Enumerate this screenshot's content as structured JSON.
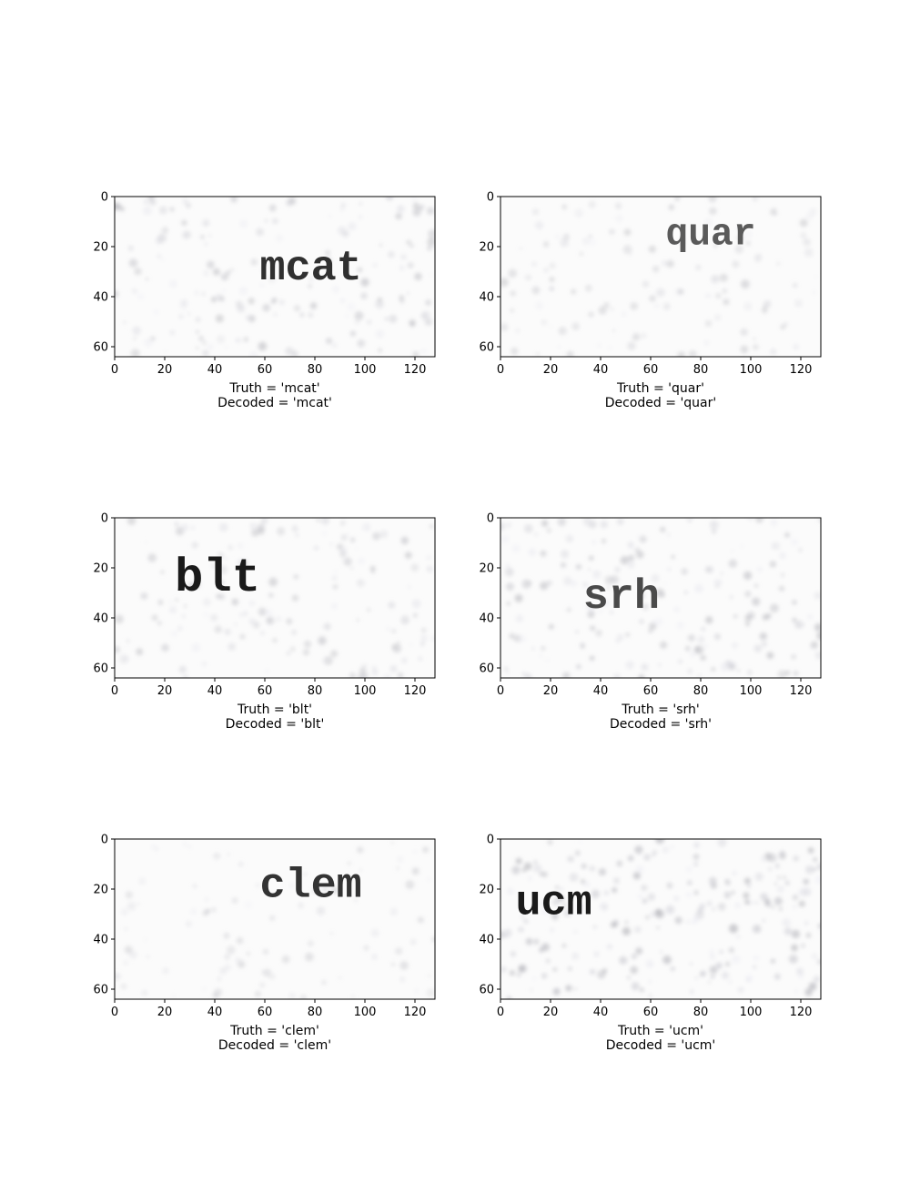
{
  "chart_data": [
    {
      "type": "image",
      "xticks": [
        0,
        20,
        40,
        60,
        80,
        100,
        120
      ],
      "yticks": [
        0,
        20,
        40,
        60
      ],
      "xlim": [
        0,
        128
      ],
      "ylim": [
        64,
        0
      ],
      "image_text": {
        "text": "mcat",
        "x": 58,
        "y": 33,
        "size": 17,
        "shade": "#303030"
      },
      "noise": 0.35,
      "truth_caption": "Truth = 'mcat'",
      "decoded_caption": "Decoded = 'mcat'"
    },
    {
      "type": "image",
      "xticks": [
        0,
        20,
        40,
        60,
        80,
        100,
        120
      ],
      "yticks": [
        0,
        20,
        40,
        60
      ],
      "xlim": [
        0,
        128
      ],
      "ylim": [
        64,
        0
      ],
      "image_text": {
        "text": "quar",
        "x": 66,
        "y": 19,
        "size": 15,
        "shade": "#5a5a5a"
      },
      "noise": 0.2,
      "truth_caption": "Truth = 'quar'",
      "decoded_caption": "Decoded = 'quar'"
    },
    {
      "type": "image",
      "xticks": [
        0,
        20,
        40,
        60,
        80,
        100,
        120
      ],
      "yticks": [
        0,
        20,
        40,
        60
      ],
      "xlim": [
        0,
        128
      ],
      "ylim": [
        64,
        0
      ],
      "image_text": {
        "text": "blt",
        "x": 24,
        "y": 29,
        "size": 19,
        "shade": "#1a1a1a"
      },
      "noise": 0.3,
      "truth_caption": "Truth = 'blt'",
      "decoded_caption": "Decoded = 'blt'"
    },
    {
      "type": "image",
      "xticks": [
        0,
        20,
        40,
        60,
        80,
        100,
        120
      ],
      "yticks": [
        0,
        20,
        40,
        60
      ],
      "xlim": [
        0,
        128
      ],
      "ylim": [
        64,
        0
      ],
      "image_text": {
        "text": "srh",
        "x": 33,
        "y": 36,
        "size": 17,
        "shade": "#4a4a4a"
      },
      "noise": 0.4,
      "truth_caption": "Truth = 'srh'",
      "decoded_caption": "Decoded = 'srh'"
    },
    {
      "type": "image",
      "xticks": [
        0,
        20,
        40,
        60,
        80,
        100,
        120
      ],
      "yticks": [
        0,
        20,
        40,
        60
      ],
      "xlim": [
        0,
        128
      ],
      "ylim": [
        64,
        0
      ],
      "image_text": {
        "text": "clem",
        "x": 58,
        "y": 23,
        "size": 17,
        "shade": "#333333"
      },
      "noise": 0.12,
      "truth_caption": "Truth = 'clem'",
      "decoded_caption": "Decoded = 'clem'"
    },
    {
      "type": "image",
      "xticks": [
        0,
        20,
        40,
        60,
        80,
        100,
        120
      ],
      "yticks": [
        0,
        20,
        40,
        60
      ],
      "xlim": [
        0,
        128
      ],
      "ylim": [
        64,
        0
      ],
      "image_text": {
        "text": "ucm",
        "x": 6,
        "y": 30,
        "size": 17,
        "shade": "#1a1a1a"
      },
      "noise": 0.55,
      "truth_caption": "Truth = 'ucm'",
      "decoded_caption": "Decoded = 'ucm'"
    }
  ]
}
